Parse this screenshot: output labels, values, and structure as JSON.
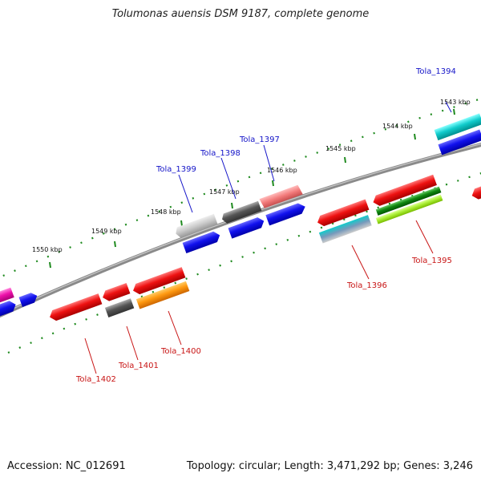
{
  "title": "Tolumonas auensis DSM 9187, complete genome",
  "footer": {
    "accession": "Accession: NC_012691",
    "summary": "Topology: circular; Length: 3,471,292 bp; Genes: 3,246"
  },
  "colors": {
    "backbone": "#8a8a8a",
    "tick": "#1e8a1e",
    "top_label": "#1414c8",
    "bottom_label": "#c81414"
  },
  "ticks": [
    "1543 kbp",
    "1544 kbp",
    "1545 kbp",
    "1546 kbp",
    "1547 kbp",
    "1548 kbp",
    "1549 kbp",
    "1550 kbp"
  ],
  "top_labels": [
    "Tola_1394",
    "Tola_1397",
    "Tola_1398",
    "Tola_1399"
  ],
  "bottom_labels": [
    "Tola_1395",
    "Tola_1396",
    "Tola_1400",
    "Tola_1401",
    "Tola_1402"
  ]
}
